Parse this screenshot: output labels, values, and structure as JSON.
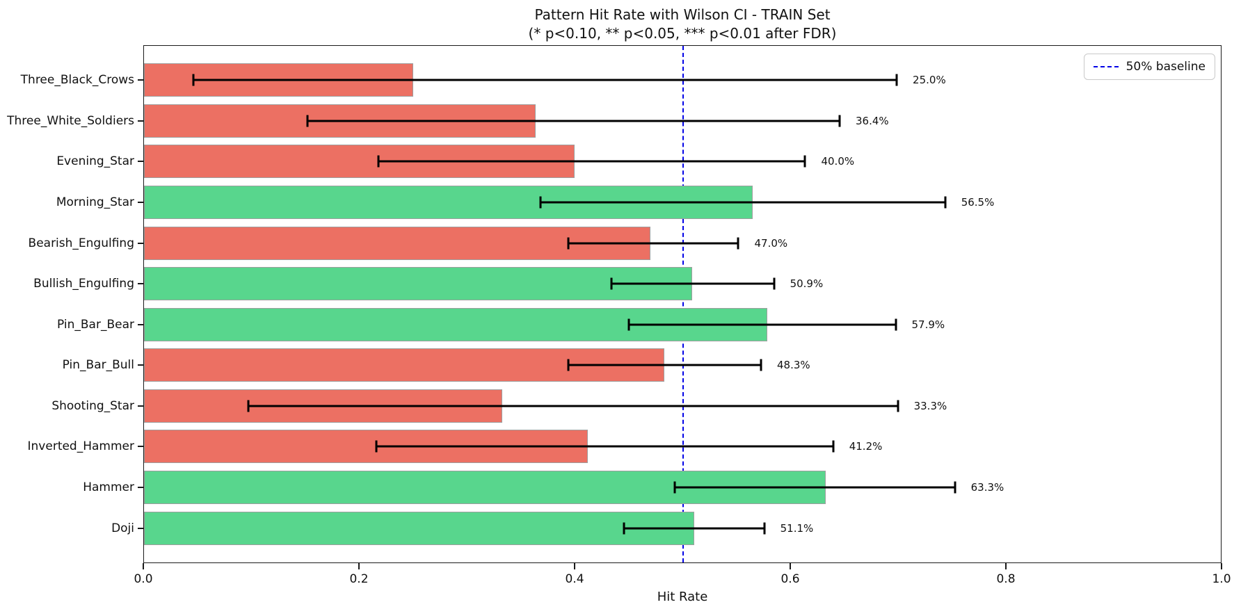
{
  "title": "Pattern Hit Rate with Wilson CI - TRAIN Set",
  "subtitle": "(* p<0.10, ** p<0.05, *** p<0.01 after FDR)",
  "xlabel": "Hit Rate",
  "legend": {
    "label": "50% baseline"
  },
  "palette": {
    "positive_bar": "#58d68d",
    "negative_bar": "#ec7063",
    "bar_edge": "#9e9e9e",
    "baseline_line": "#0000e6",
    "error_bar": "#000000"
  },
  "chart_data": {
    "type": "bar",
    "orientation": "horizontal",
    "title": "Pattern Hit Rate with Wilson CI - TRAIN Set",
    "subtitle": "(* p<0.10, ** p<0.05, *** p<0.01 after FDR)",
    "xlabel": "Hit Rate",
    "ylabel": "",
    "xlim": [
      0.0,
      1.0
    ],
    "xtick_labels": [
      "0.0",
      "0.2",
      "0.4",
      "0.6",
      "0.8",
      "1.0"
    ],
    "xtick_values": [
      0.0,
      0.2,
      0.4,
      0.6,
      0.8,
      1.0
    ],
    "grid": false,
    "baseline_x": 0.5,
    "legend_position": "upper-right",
    "categories_top_to_bottom": [
      "Three_Black_Crows",
      "Three_White_Soldiers",
      "Evening_Star",
      "Morning_Star",
      "Bearish_Engulfing",
      "Bullish_Engulfing",
      "Pin_Bar_Bear",
      "Pin_Bar_Bull",
      "Shooting_Star",
      "Inverted_Hammer",
      "Hammer",
      "Doji"
    ],
    "items": [
      {
        "category": "Three_Black_Crows",
        "value": 0.25,
        "label": "25.0%",
        "ci_low": 0.046,
        "ci_high": 0.699,
        "color": "negative"
      },
      {
        "category": "Three_White_Soldiers",
        "value": 0.364,
        "label": "36.4%",
        "ci_low": 0.152,
        "ci_high": 0.646,
        "color": "negative"
      },
      {
        "category": "Evening_Star",
        "value": 0.4,
        "label": "40.0%",
        "ci_low": 0.218,
        "ci_high": 0.614,
        "color": "negative"
      },
      {
        "category": "Morning_Star",
        "value": 0.565,
        "label": "56.5%",
        "ci_low": 0.368,
        "ci_high": 0.744,
        "color": "positive"
      },
      {
        "category": "Bearish_Engulfing",
        "value": 0.47,
        "label": "47.0%",
        "ci_low": 0.394,
        "ci_high": 0.552,
        "color": "negative"
      },
      {
        "category": "Bullish_Engulfing",
        "value": 0.509,
        "label": "50.9%",
        "ci_low": 0.434,
        "ci_high": 0.585,
        "color": "positive"
      },
      {
        "category": "Pin_Bar_Bear",
        "value": 0.579,
        "label": "57.9%",
        "ci_low": 0.45,
        "ci_high": 0.698,
        "color": "positive"
      },
      {
        "category": "Pin_Bar_Bull",
        "value": 0.483,
        "label": "48.3%",
        "ci_low": 0.394,
        "ci_high": 0.573,
        "color": "negative"
      },
      {
        "category": "Shooting_Star",
        "value": 0.333,
        "label": "33.3%",
        "ci_low": 0.097,
        "ci_high": 0.7,
        "color": "negative"
      },
      {
        "category": "Inverted_Hammer",
        "value": 0.412,
        "label": "41.2%",
        "ci_low": 0.216,
        "ci_high": 0.64,
        "color": "negative"
      },
      {
        "category": "Hammer",
        "value": 0.633,
        "label": "63.3%",
        "ci_low": 0.493,
        "ci_high": 0.753,
        "color": "positive"
      },
      {
        "category": "Doji",
        "value": 0.511,
        "label": "51.1%",
        "ci_low": 0.446,
        "ci_high": 0.576,
        "color": "positive"
      }
    ]
  }
}
